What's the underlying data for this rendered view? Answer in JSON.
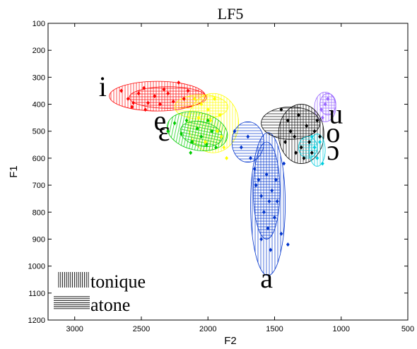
{
  "chart_data": {
    "type": "scatter",
    "title": "LF5",
    "xlabel": "F2",
    "ylabel": "F1",
    "x_reversed": true,
    "y_reversed": true,
    "xlim": [
      3200,
      500
    ],
    "ylim": [
      100,
      1200
    ],
    "x_ticks": [
      3000,
      2500,
      2000,
      1500,
      1000,
      500
    ],
    "y_ticks": [
      100,
      200,
      300,
      400,
      500,
      600,
      700,
      800,
      900,
      1000,
      1100,
      1200
    ],
    "grid": false,
    "legend": {
      "placement": "bottom-left",
      "entries": [
        {
          "label": "tonique",
          "hatch": "vertical"
        },
        {
          "label": "atone",
          "hatch": "horizontal"
        }
      ]
    },
    "vowels": [
      {
        "symbol": "i",
        "color": "#ff0000",
        "label_at": [
          2790,
          370
        ],
        "ellipses": [
          {
            "hatch": "vertical",
            "cx": 2380,
            "cy": 370,
            "rx": 360,
            "ry": 55,
            "angle": 0
          },
          {
            "hatch": "horizontal",
            "cx": 2300,
            "cy": 375,
            "rx": 290,
            "ry": 40,
            "angle": 0
          }
        ],
        "points": [
          [
            2650,
            350
          ],
          [
            2600,
            380
          ],
          [
            2570,
            410
          ],
          [
            2520,
            360
          ],
          [
            2480,
            340
          ],
          [
            2450,
            395
          ],
          [
            2400,
            370
          ],
          [
            2360,
            400
          ],
          [
            2330,
            345
          ],
          [
            2300,
            360
          ],
          [
            2260,
            390
          ],
          [
            2220,
            320
          ],
          [
            2180,
            380
          ],
          [
            2150,
            350
          ],
          [
            2560,
            395
          ],
          [
            2470,
            420
          ]
        ]
      },
      {
        "symbol": "e",
        "color": "#ffff00",
        "label_at": [
          2360,
          495
        ],
        "ellipses": [
          {
            "hatch": "vertical",
            "cx": 1960,
            "cy": 470,
            "rx": 190,
            "ry": 110,
            "angle": 0
          },
          {
            "hatch": "horizontal",
            "cx": 2050,
            "cy": 410,
            "rx": 200,
            "ry": 45,
            "angle": 0
          }
        ],
        "points": [
          [
            2100,
            380
          ],
          [
            2050,
            400
          ],
          [
            2000,
            420
          ],
          [
            1980,
            460
          ],
          [
            1950,
            380
          ],
          [
            1930,
            500
          ],
          [
            1900,
            520
          ],
          [
            1880,
            560
          ],
          [
            1860,
            600
          ],
          [
            2020,
            540
          ],
          [
            2070,
            450
          ],
          [
            1910,
            440
          ]
        ]
      },
      {
        "symbol": "ɛ",
        "color": "#00cc00",
        "label_at": [
          2330,
          535
        ],
        "ellipses": [
          {
            "hatch": "vertical",
            "cx": 2080,
            "cy": 500,
            "rx": 230,
            "ry": 70,
            "angle": 12
          },
          {
            "hatch": "horizontal",
            "cx": 2050,
            "cy": 510,
            "rx": 160,
            "ry": 45,
            "angle": 12
          }
        ],
        "points": [
          [
            2250,
            470
          ],
          [
            2200,
            510
          ],
          [
            2160,
            460
          ],
          [
            2120,
            540
          ],
          [
            2080,
            490
          ],
          [
            2050,
            520
          ],
          [
            2000,
            460
          ],
          [
            1970,
            500
          ],
          [
            1940,
            560
          ],
          [
            2300,
            500
          ],
          [
            2130,
            580
          ],
          [
            2010,
            550
          ]
        ]
      },
      {
        "symbol": "a",
        "color": "#0033cc",
        "label_at": [
          1560,
          1080
        ],
        "ellipses": [
          {
            "hatch": "vertical",
            "cx": 1550,
            "cy": 770,
            "rx": 130,
            "ry": 265,
            "angle": 0
          },
          {
            "hatch": "horizontal",
            "cx": 1560,
            "cy": 720,
            "rx": 100,
            "ry": 180,
            "angle": 0
          },
          {
            "hatch": "horizontal",
            "cx": 1700,
            "cy": 540,
            "rx": 120,
            "ry": 75,
            "angle": 0
          }
        ],
        "points": [
          [
            1800,
            500
          ],
          [
            1750,
            560
          ],
          [
            1700,
            520
          ],
          [
            1680,
            600
          ],
          [
            1650,
            640
          ],
          [
            1640,
            700
          ],
          [
            1620,
            680
          ],
          [
            1600,
            740
          ],
          [
            1580,
            800
          ],
          [
            1560,
            660
          ],
          [
            1550,
            860
          ],
          [
            1540,
            760
          ],
          [
            1520,
            720
          ],
          [
            1500,
            820
          ],
          [
            1490,
            680
          ],
          [
            1480,
            760
          ],
          [
            1450,
            880
          ],
          [
            1430,
            620
          ],
          [
            1600,
            900
          ],
          [
            1530,
            940
          ],
          [
            1400,
            920
          ]
        ]
      },
      {
        "symbol": "u",
        "color": "#9966ff",
        "label_at": [
          1040,
          470
        ],
        "ellipses": [
          {
            "hatch": "vertical",
            "cx": 1120,
            "cy": 410,
            "rx": 80,
            "ry": 55,
            "angle": 0
          },
          {
            "hatch": "horizontal",
            "cx": 1100,
            "cy": 400,
            "rx": 60,
            "ry": 40,
            "angle": 0
          }
        ],
        "points": [
          [
            1150,
            420
          ],
          [
            1120,
            400
          ],
          [
            1100,
            380
          ],
          [
            1140,
            450
          ]
        ]
      },
      {
        "symbol": "o",
        "color": "#000000",
        "label_at": [
          1060,
          540
        ],
        "ellipses": [
          {
            "hatch": "vertical",
            "cx": 1300,
            "cy": 510,
            "rx": 170,
            "ry": 110,
            "angle": 0
          },
          {
            "hatch": "horizontal",
            "cx": 1380,
            "cy": 470,
            "rx": 220,
            "ry": 60,
            "angle": 0
          }
        ],
        "points": [
          [
            1450,
            420
          ],
          [
            1400,
            460
          ],
          [
            1380,
            500
          ],
          [
            1350,
            520
          ],
          [
            1320,
            440
          ],
          [
            1300,
            560
          ],
          [
            1280,
            600
          ],
          [
            1260,
            480
          ],
          [
            1240,
            540
          ],
          [
            1220,
            580
          ],
          [
            1200,
            500
          ],
          [
            1180,
            460
          ],
          [
            1160,
            520
          ],
          [
            1340,
            580
          ],
          [
            1420,
            540
          ]
        ]
      },
      {
        "symbol": "ɔ",
        "color": "#00ccdd",
        "label_at": [
          1060,
          605
        ],
        "ellipses": [
          {
            "hatch": "vertical",
            "cx": 1180,
            "cy": 570,
            "rx": 60,
            "ry": 60,
            "angle": 0
          },
          {
            "hatch": "horizontal",
            "cx": 1250,
            "cy": 560,
            "rx": 70,
            "ry": 40,
            "angle": 0
          }
        ],
        "points": [
          [
            1200,
            560
          ],
          [
            1180,
            600
          ],
          [
            1160,
            540
          ],
          [
            1140,
            620
          ],
          [
            1220,
            520
          ]
        ]
      }
    ]
  }
}
